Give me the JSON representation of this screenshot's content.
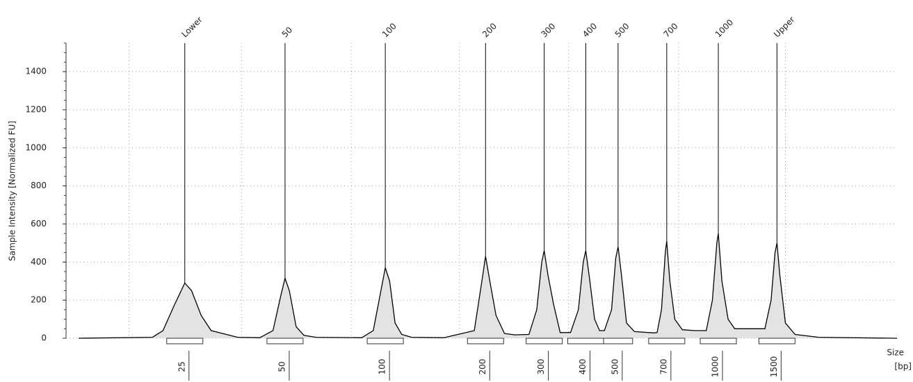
{
  "chart_data": {
    "type": "electropherogram",
    "y_label": "Sample Intensity [Normalized FU]",
    "x_label": [
      "Size",
      "[bp]"
    ],
    "log_x": true,
    "xlim": [
      11,
      3440
    ],
    "ylim": [
      0,
      1550
    ],
    "yticks": [
      0,
      200,
      400,
      600,
      800,
      1000,
      1200,
      1400
    ],
    "xgrid": [
      17,
      37,
      79,
      167,
      355,
      760,
      1590
    ],
    "grid": true,
    "line_color": "#000000",
    "fill_color": "#e3e3e3",
    "peaks": [
      {
        "label": "Lower",
        "size": 25,
        "height": 290
      },
      {
        "label": "50",
        "size": 50,
        "height": 315
      },
      {
        "label": "100",
        "size": 100,
        "height": 370
      },
      {
        "label": "200",
        "size": 200,
        "height": 430
      },
      {
        "label": "300",
        "size": 300,
        "height": 460
      },
      {
        "label": "400",
        "size": 400,
        "height": 460
      },
      {
        "label": "500",
        "size": 500,
        "height": 480
      },
      {
        "label": "700",
        "size": 700,
        "height": 510
      },
      {
        "label": "1000",
        "size": 1000,
        "height": 550
      },
      {
        "label": "Upper",
        "size": 1500,
        "height": 500
      }
    ],
    "trace": {
      "x": [
        12,
        20,
        21.5,
        23.2,
        25,
        26.2,
        28,
        30,
        33,
        36,
        42,
        46,
        48.5,
        50,
        51.5,
        54,
        57,
        62,
        85,
        92,
        97,
        100,
        103,
        107,
        112,
        120,
        150,
        185,
        195,
        200,
        206,
        215,
        228,
        245,
        270,
        285,
        295,
        300,
        308,
        320,
        335,
        360,
        380,
        393,
        400,
        410,
        425,
        440,
        455,
        478,
        492,
        500,
        512,
        530,
        560,
        640,
        655,
        675,
        693,
        700,
        715,
        740,
        780,
        850,
        920,
        960,
        990,
        1000,
        1025,
        1070,
        1120,
        1380,
        1440,
        1480,
        1500,
        1530,
        1590,
        1700,
        2000,
        3400
      ],
      "y": [
        0,
        5,
        40,
        170,
        290,
        250,
        120,
        40,
        22,
        5,
        3,
        40,
        220,
        315,
        250,
        60,
        15,
        5,
        3,
        40,
        250,
        370,
        300,
        80,
        20,
        5,
        3,
        40,
        300,
        430,
        300,
        120,
        25,
        18,
        20,
        150,
        400,
        460,
        330,
        180,
        30,
        30,
        150,
        400,
        460,
        320,
        100,
        40,
        40,
        150,
        420,
        480,
        330,
        80,
        35,
        28,
        30,
        150,
        450,
        510,
        300,
        100,
        45,
        40,
        40,
        200,
        500,
        550,
        300,
        100,
        50,
        50,
        200,
        450,
        500,
        330,
        80,
        20,
        5,
        0
      ]
    }
  }
}
